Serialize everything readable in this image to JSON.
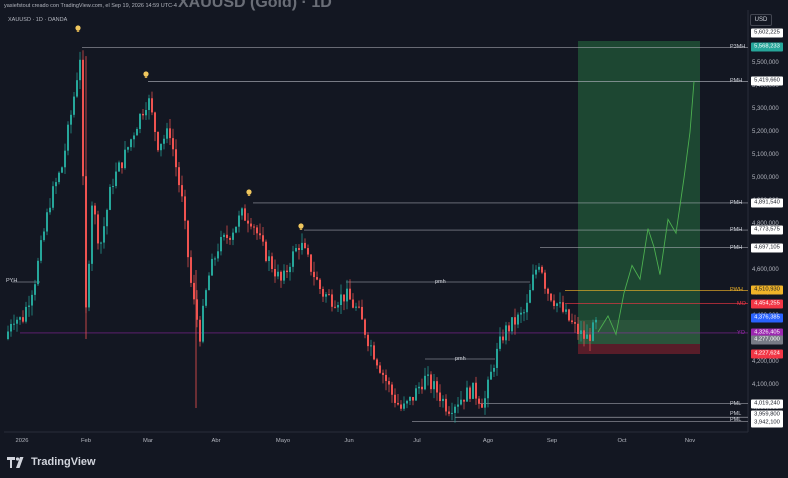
{
  "header": {
    "attribution": "yasiefstout creado con TradingView.com, el Sep 19, 2026 14:59 UTC-4",
    "watermark_title": "XAUUSD (Gold) · 1D",
    "symbol_line": "XAUUSD · 1D · OANDA"
  },
  "price_axis": {
    "currency_button": "USD",
    "ticks": [
      {
        "value": 5500000,
        "label": "5,500,000"
      },
      {
        "value": 5400000,
        "label": "5,400,000"
      },
      {
        "value": 5300000,
        "label": "5,300,000"
      },
      {
        "value": 5200000,
        "label": "5,200,000"
      },
      {
        "value": 5100000,
        "label": "5,100,000"
      },
      {
        "value": 5000000,
        "label": "5,000,000"
      },
      {
        "value": 4900000,
        "label": "4,900,000"
      },
      {
        "value": 4800000,
        "label": "4,800,000"
      },
      {
        "value": 4700000,
        "label": "4,700,000"
      },
      {
        "value": 4600000,
        "label": "4,600,000"
      },
      {
        "value": 4500000,
        "label": "4,500,000"
      },
      {
        "value": 4400000,
        "label": "4,400,000"
      },
      {
        "value": 4300000,
        "label": "4,300,000"
      },
      {
        "value": 4200000,
        "label": "4,200,000"
      },
      {
        "value": 4100000,
        "label": "4,100,000"
      },
      {
        "value": 4000000,
        "label": "4,000,000"
      }
    ],
    "labels": [
      {
        "value": 5602225,
        "text": "5,602,225",
        "bg": "#ffffff",
        "fg": "#131722"
      },
      {
        "value": 5568233,
        "text": "5,568,233",
        "bg": "#26a69a",
        "fg": "#ffffff"
      },
      {
        "value": 5419660,
        "text": "5,419,660",
        "bg": "#ffffff",
        "fg": "#131722"
      },
      {
        "value": 4891540,
        "text": "4,891,540",
        "bg": "#ffffff",
        "fg": "#131722"
      },
      {
        "value": 4773575,
        "text": "4,773,575",
        "bg": "#ffffff",
        "fg": "#131722"
      },
      {
        "value": 4697105,
        "text": "4,697,105",
        "bg": "#ffffff",
        "fg": "#131722"
      },
      {
        "value": 4510930,
        "text": "4,510,930",
        "bg": "#f0b429",
        "fg": "#131722"
      },
      {
        "value": 4454255,
        "text": "4,454,255",
        "bg": "#f23645",
        "fg": "#ffffff"
      },
      {
        "value": 4376385,
        "text": "4,376,385",
        "bg": "#2962ff",
        "fg": "#ffffff"
      },
      {
        "value": 4326405,
        "text": "4,326,405",
        "bg": "#9c27b0",
        "fg": "#ffffff"
      },
      {
        "value": 4277000,
        "text": "4,277,000",
        "bg": "#787b86",
        "fg": "#ffffff"
      },
      {
        "value": 4227624,
        "text": "4,227,624",
        "bg": "#f23645",
        "fg": "#ffffff"
      },
      {
        "value": 4019240,
        "text": "4,019,240",
        "bg": "#ffffff",
        "fg": "#131722"
      },
      {
        "value": 3959800,
        "text": "3,959,800",
        "bg": "#ffffff",
        "fg": "#131722"
      },
      {
        "value": 3942100,
        "text": "3,942,100",
        "bg": "#ffffff",
        "fg": "#131722"
      }
    ]
  },
  "time_axis": {
    "labels": [
      "2026",
      "Feb",
      "Mar",
      "Abr",
      "Mayo",
      "Jun",
      "Jul",
      "Ago",
      "Sep",
      "Oct",
      "Nov"
    ]
  },
  "levels": [
    {
      "tag": "P3MH",
      "value": 5568233,
      "color": "#b2b5be"
    },
    {
      "tag": "PMH",
      "value": 5419660,
      "color": "#b2b5be"
    },
    {
      "tag": "PMH",
      "value": 4891540,
      "color": "#b2b5be"
    },
    {
      "tag": "PMH",
      "value": 4773575,
      "color": "#b2b5be"
    },
    {
      "tag": "PMH",
      "value": 4697105,
      "color": "#b2b5be"
    },
    {
      "tag": "PWH",
      "value": 4510930,
      "color": "#f0b429"
    },
    {
      "tag": "MO",
      "value": 4454255,
      "color": "#f23645"
    },
    {
      "tag": "YO",
      "value": 4326405,
      "color": "#9c27b0"
    },
    {
      "tag": "PML",
      "value": 4019240,
      "color": "#b2b5be"
    },
    {
      "tag": "PML",
      "value": 3959800,
      "color": "#b2b5be"
    },
    {
      "tag": "PML",
      "value": 3942100,
      "color": "#b2b5be"
    }
  ],
  "inline_labels": [
    "PYH",
    "pmh",
    "pmh"
  ],
  "colors": {
    "bull": "#26a69a",
    "bear": "#ef5350",
    "background": "#131722",
    "long_zone": "#1f4d34",
    "stop_zone": "#5c1e2a",
    "projection": "#4caf50"
  },
  "footer": {
    "logo_text": "TradingView"
  }
}
